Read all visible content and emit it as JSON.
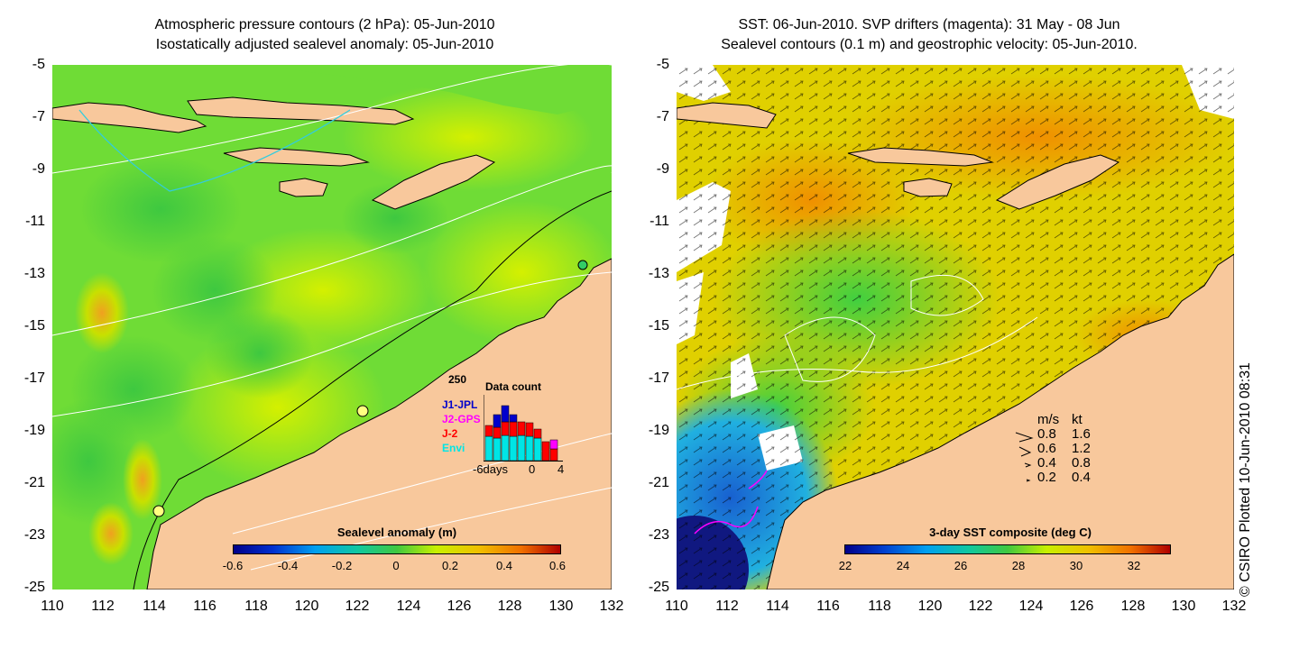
{
  "left_panel": {
    "title_line1": "Atmospheric pressure contours (2 hPa): 05-Jun-2010",
    "title_line2": "Isostatically adjusted sealevel anomaly: 05-Jun-2010",
    "colorbar_title": "Sealevel anomaly (m)",
    "colorbar_ticks": [
      "-0.6",
      "-0.4",
      "-0.2",
      "0",
      "0.2",
      "0.4",
      "0.6"
    ],
    "inset": {
      "top_value": "250",
      "title": "Data count",
      "series": [
        {
          "name": "J1-JPL",
          "color": "#0000cc"
        },
        {
          "name": "J2-GPS",
          "color": "#ff00ff"
        },
        {
          "name": "J-2",
          "color": "#ff0000"
        },
        {
          "name": "Envi",
          "color": "#00e5e5"
        }
      ],
      "xlabel_left": "-6days",
      "xlabel_mid": "0",
      "xlabel_right": "4"
    }
  },
  "right_panel": {
    "title_line1": "SST: 06-Jun-2010. SVP drifters (magenta): 31 May - 08 Jun",
    "title_line2": "Sealevel contours (0.1 m) and geostrophic velocity: 05-Jun-2010.",
    "colorbar_title": "3-day SST composite (deg C)",
    "colorbar_ticks": [
      "22",
      "24",
      "26",
      "28",
      "30",
      "32"
    ],
    "speed_legend": {
      "header_ms": "m/s",
      "header_kt": "kt",
      "rows": [
        {
          "ms": "0.8",
          "kt": "1.6"
        },
        {
          "ms": "0.6",
          "kt": "1.2"
        },
        {
          "ms": "0.4",
          "kt": "0.8"
        },
        {
          "ms": "0.2",
          "kt": "0.4"
        }
      ]
    }
  },
  "latitude_ticks": [
    "-5",
    "-7",
    "-9",
    "-11",
    "-13",
    "-15",
    "-17",
    "-19",
    "-21",
    "-23",
    "-25"
  ],
  "longitude_ticks": [
    "110",
    "112",
    "114",
    "116",
    "118",
    "120",
    "122",
    "124",
    "126",
    "128",
    "130",
    "132"
  ],
  "credit": "© CSIRO Plotted 10-Jun-2010 08:31",
  "colors": {
    "land": "#f8c89c",
    "ocean_green": "#5fd83a",
    "ocean_yellow": "#c8f000",
    "sst_orange": "#f0b000",
    "sst_blue": "#1f6fd0"
  }
}
